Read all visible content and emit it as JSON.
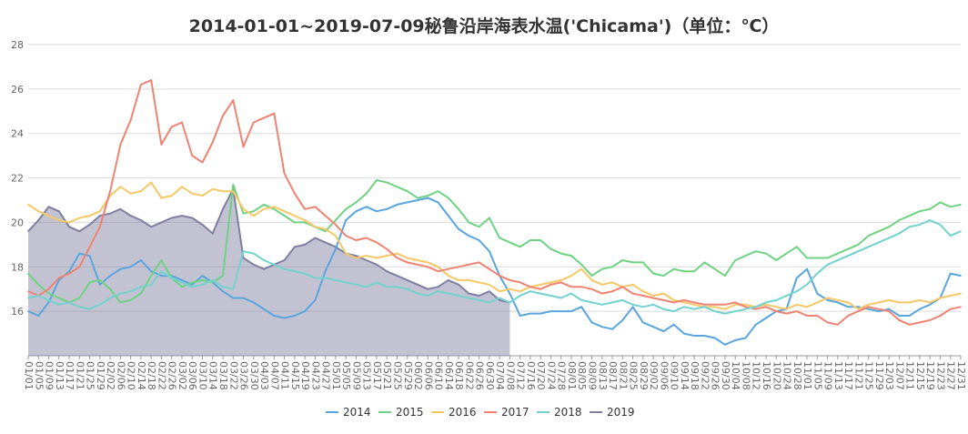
{
  "chart_data": {
    "type": "line",
    "title": "2014-01-01~2019-07-09秘鲁沿岸海表水温('Chicama')（单位：℃）",
    "xlabel": "",
    "ylabel": "",
    "ylim": [
      14,
      28
    ],
    "yticks": [
      16,
      18,
      20,
      22,
      24,
      26,
      28
    ],
    "grid": true,
    "legend_position": "bottom",
    "x_ticks": [
      "01/01",
      "01/05",
      "01/09",
      "01/13",
      "01/17",
      "01/21",
      "01/25",
      "01/29",
      "02/02",
      "02/06",
      "02/10",
      "02/14",
      "02/18",
      "02/22",
      "02/26",
      "03/02",
      "03/06",
      "03/10",
      "03/14",
      "03/18",
      "03/22",
      "03/26",
      "03/30",
      "04/03",
      "04/07",
      "04/11",
      "04/15",
      "04/19",
      "04/23",
      "04/27",
      "05/01",
      "05/05",
      "05/09",
      "05/13",
      "05/17",
      "05/21",
      "05/25",
      "05/29",
      "06/02",
      "06/06",
      "06/10",
      "06/14",
      "06/18",
      "06/22",
      "06/26",
      "06/30",
      "07/04",
      "07/08",
      "07/12",
      "07/16",
      "07/20",
      "07/24",
      "07/28",
      "08/01",
      "08/05",
      "08/09",
      "08/13",
      "08/17",
      "08/21",
      "08/25",
      "08/29",
      "09/02",
      "09/06",
      "09/10",
      "09/14",
      "09/18",
      "09/22",
      "09/26",
      "09/30",
      "10/04",
      "10/08",
      "10/12",
      "10/16",
      "10/20",
      "10/24",
      "10/28",
      "11/01",
      "11/05",
      "11/09",
      "11/13",
      "11/17",
      "11/21",
      "11/25",
      "11/29",
      "12/03",
      "12/07",
      "12/11",
      "12/15",
      "12/19",
      "12/23",
      "12/27",
      "12/31"
    ],
    "series": [
      {
        "name": "2014",
        "color": "#5aa5dd",
        "area": false,
        "values": [
          16,
          15.8,
          16.4,
          17.4,
          17.8,
          18.6,
          18.5,
          17.2,
          17.6,
          17.9,
          18,
          18.3,
          17.8,
          17.6,
          17.6,
          17.4,
          17.2,
          17.6,
          17.3,
          16.9,
          16.6,
          16.6,
          16.4,
          16.1,
          15.8,
          15.7,
          15.8,
          16,
          16.5,
          17.8,
          18.8,
          20.1,
          20.5,
          20.7,
          20.5,
          20.6,
          20.8,
          20.9,
          21,
          21.1,
          20.9,
          20.3,
          19.7,
          19.4,
          19.2,
          18.7,
          17.6,
          16.8,
          15.8,
          15.9,
          15.9,
          16,
          16,
          16,
          16.2,
          15.5,
          15.3,
          15.2,
          15.6,
          16.2,
          15.5,
          15.3,
          15.1,
          15.4,
          15,
          14.9,
          14.9,
          14.8,
          14.5,
          14.7,
          14.8,
          15.4,
          15.7,
          16,
          16.1,
          17.5,
          17.9,
          16.8,
          16.5,
          16.4,
          16.2,
          16.2,
          16.1,
          16,
          16.1,
          15.8,
          15.8,
          16.1,
          16.3,
          16.6,
          17.7,
          17.6
        ]
      },
      {
        "name": "2015",
        "color": "#6fd283",
        "area": false,
        "values": [
          17.7,
          17.2,
          16.8,
          16.6,
          16.4,
          16.6,
          17.3,
          17.4,
          17,
          16.4,
          16.5,
          16.8,
          17.6,
          18.3,
          17.5,
          17.1,
          17.3,
          17.4,
          17.3,
          17.6,
          21.7,
          20.4,
          20.5,
          20.8,
          20.6,
          20.3,
          20,
          20,
          19.8,
          19.6,
          20.1,
          20.6,
          20.9,
          21.3,
          21.9,
          21.8,
          21.6,
          21.4,
          21.1,
          21.2,
          21.4,
          21.1,
          20.6,
          20,
          19.8,
          20.2,
          19.3,
          19.1,
          18.9,
          19.2,
          19.2,
          18.8,
          18.6,
          18.5,
          18.1,
          17.6,
          17.9,
          18,
          18.3,
          18.2,
          18.2,
          17.7,
          17.6,
          17.9,
          17.8,
          17.8,
          18.2,
          17.9,
          17.6,
          18.3,
          18.5,
          18.7,
          18.6,
          18.3,
          18.6,
          18.9,
          18.4,
          18.4,
          18.4,
          18.6,
          18.8,
          19,
          19.4,
          19.6,
          19.8,
          20.1,
          20.3,
          20.5,
          20.6,
          20.9,
          20.7,
          20.8
        ]
      },
      {
        "name": "2016",
        "color": "#f6c766",
        "area": false,
        "values": [
          20.8,
          20.5,
          20.3,
          20.1,
          20,
          20.2,
          20.3,
          20.5,
          21.2,
          21.6,
          21.3,
          21.4,
          21.8,
          21.1,
          21.2,
          21.6,
          21.3,
          21.2,
          21.5,
          21.4,
          21.4,
          20.6,
          20.3,
          20.6,
          20.7,
          20.5,
          20.3,
          20.1,
          19.8,
          19.7,
          19.4,
          18.6,
          18.4,
          18.5,
          18.4,
          18.5,
          18.6,
          18.4,
          18.3,
          18.2,
          18,
          17.6,
          17.4,
          17.4,
          17.3,
          17.2,
          16.9,
          17,
          16.9,
          17.1,
          17.2,
          17.3,
          17.4,
          17.6,
          17.9,
          17.4,
          17.2,
          17.3,
          17.1,
          17.2,
          16.9,
          16.7,
          16.8,
          16.5,
          16.4,
          16.3,
          16.2,
          16.2,
          16.1,
          16.3,
          16.3,
          16.2,
          16.3,
          16.2,
          16.1,
          16.3,
          16.2,
          16.4,
          16.6,
          16.5,
          16.4,
          16.1,
          16.3,
          16.4,
          16.5,
          16.4,
          16.4,
          16.5,
          16.4,
          16.6,
          16.7,
          16.8
        ]
      },
      {
        "name": "2017",
        "color": "#ef8372",
        "area": false,
        "values": [
          16.9,
          16.7,
          17,
          17.5,
          17.7,
          18,
          18.9,
          19.8,
          21.4,
          23.5,
          24.6,
          26.2,
          26.4,
          23.5,
          24.3,
          24.5,
          23,
          22.7,
          23.6,
          24.8,
          25.5,
          23.4,
          24.5,
          24.7,
          24.9,
          22.2,
          21.3,
          20.6,
          20.7,
          20.3,
          19.9,
          19.4,
          19.2,
          19.3,
          19.1,
          18.8,
          18.4,
          18.2,
          18.1,
          18,
          17.8,
          17.9,
          18,
          18.1,
          18.2,
          17.9,
          17.6,
          17.4,
          17.3,
          17.1,
          17,
          17.2,
          17.3,
          17.1,
          17.1,
          17,
          16.8,
          16.9,
          17.1,
          16.8,
          16.7,
          16.6,
          16.5,
          16.4,
          16.5,
          16.4,
          16.3,
          16.3,
          16.3,
          16.4,
          16.2,
          16.1,
          16.2,
          16,
          15.9,
          16,
          15.8,
          15.8,
          15.5,
          15.4,
          15.8,
          16,
          16.2,
          16.1,
          16,
          15.6,
          15.4,
          15.5,
          15.6,
          15.8,
          16.1,
          16.2
        ]
      },
      {
        "name": "2018",
        "color": "#72d2cd",
        "area": false,
        "values": [
          16.6,
          16.7,
          16.5,
          16.3,
          16.4,
          16.2,
          16.1,
          16.3,
          16.6,
          16.8,
          16.9,
          17.1,
          17.2,
          17.8,
          17.5,
          17.3,
          17.1,
          17.2,
          17.4,
          17.1,
          17,
          18.7,
          18.6,
          18.3,
          18.1,
          17.9,
          17.8,
          17.7,
          17.5,
          17.5,
          17.4,
          17.3,
          17.2,
          17.1,
          17.3,
          17.1,
          17.1,
          17,
          16.8,
          16.7,
          16.9,
          16.8,
          16.7,
          16.6,
          16.5,
          16.4,
          16.6,
          16.4,
          16.7,
          16.9,
          16.8,
          16.7,
          16.6,
          16.8,
          16.5,
          16.4,
          16.3,
          16.4,
          16.5,
          16.3,
          16.2,
          16.3,
          16.1,
          16,
          16.2,
          16.1,
          16.2,
          16,
          15.9,
          16,
          16.1,
          16.2,
          16.4,
          16.5,
          16.7,
          16.9,
          17.2,
          17.7,
          18.1,
          18.3,
          18.5,
          18.7,
          18.9,
          19.1,
          19.3,
          19.5,
          19.8,
          19.9,
          20.1,
          19.9,
          19.4,
          19.6
        ]
      },
      {
        "name": "2019",
        "color": "#7f7fa1",
        "area": true,
        "values": [
          19.6,
          20.1,
          20.7,
          20.5,
          19.8,
          19.6,
          19.9,
          20.3,
          20.4,
          20.6,
          20.3,
          20.1,
          19.8,
          20,
          20.2,
          20.3,
          20.2,
          19.9,
          19.5,
          20.6,
          21.5,
          18.4,
          18.1,
          17.9,
          18.1,
          18.3,
          18.9,
          19,
          19.3,
          19.1,
          18.9,
          18.6,
          18.5,
          18.3,
          18.1,
          17.8,
          17.6,
          17.4,
          17.2,
          17,
          17.1,
          17.4,
          17.2,
          16.8,
          16.7,
          16.9,
          16.5,
          16.4
        ]
      }
    ]
  }
}
